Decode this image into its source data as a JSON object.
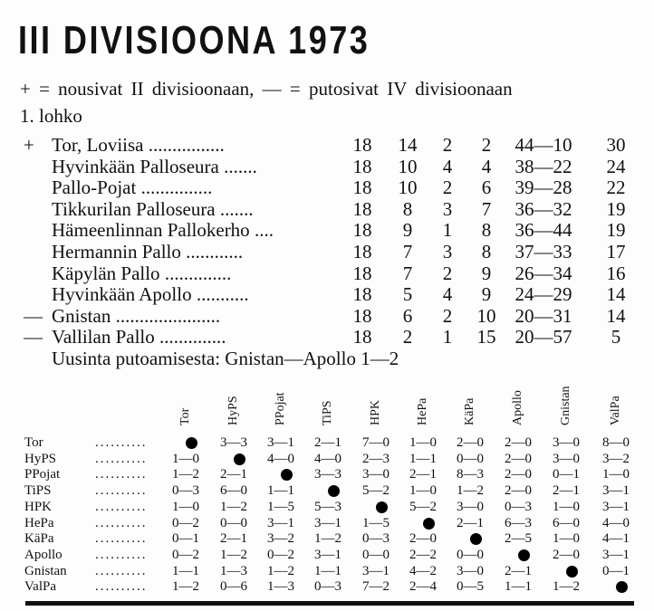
{
  "title": "III DIVISIOONA 1973",
  "legend": "+ = nousivat II divisioonaan, — = putosivat IV divisioonaan",
  "group": "1. lohko",
  "standings": [
    {
      "mark": "+",
      "name": "Tor, Loviisa",
      "dots": "................",
      "p": "18",
      "w": "14",
      "d": "2",
      "l": "2",
      "goals": "44—10",
      "pts": "30"
    },
    {
      "mark": "",
      "name": "Hyvinkään Palloseura",
      "dots": ".......",
      "p": "18",
      "w": "10",
      "d": "4",
      "l": "4",
      "goals": "38—22",
      "pts": "24"
    },
    {
      "mark": "",
      "name": "Pallo-Pojat",
      "dots": "...............",
      "p": "18",
      "w": "10",
      "d": "2",
      "l": "6",
      "goals": "39—28",
      "pts": "22"
    },
    {
      "mark": "",
      "name": "Tikkurilan Palloseura",
      "dots": ".......",
      "p": "18",
      "w": "8",
      "d": "3",
      "l": "7",
      "goals": "36—32",
      "pts": "19"
    },
    {
      "mark": "",
      "name": "Hämeenlinnan Pallokerho",
      "dots": "....",
      "p": "18",
      "w": "9",
      "d": "1",
      "l": "8",
      "goals": "36—44",
      "pts": "19"
    },
    {
      "mark": "",
      "name": "Hermannin Pallo",
      "dots": "............",
      "p": "18",
      "w": "7",
      "d": "3",
      "l": "8",
      "goals": "37—33",
      "pts": "17"
    },
    {
      "mark": "",
      "name": "Käpylän Pallo",
      "dots": "..............",
      "p": "18",
      "w": "7",
      "d": "2",
      "l": "9",
      "goals": "26—34",
      "pts": "16"
    },
    {
      "mark": "",
      "name": "Hyvinkään Apollo",
      "dots": "...........",
      "p": "18",
      "w": "5",
      "d": "4",
      "l": "9",
      "goals": "24—29",
      "pts": "14"
    },
    {
      "mark": "—",
      "name": "Gnistan",
      "dots": "......................",
      "p": "18",
      "w": "6",
      "d": "2",
      "l": "10",
      "goals": "20—31",
      "pts": "14"
    },
    {
      "mark": "—",
      "name": "Vallilan Pallo",
      "dots": "..............",
      "p": "18",
      "w": "2",
      "d": "1",
      "l": "15",
      "goals": "20—57",
      "pts": "5"
    }
  ],
  "replay": "Uusinta putoamisesta: Gnistan—Apollo 1—2",
  "matrix": {
    "teams": [
      "Tor",
      "HyPS",
      "PPojat",
      "TiPS",
      "HPK",
      "HePa",
      "KäPa",
      "Apollo",
      "Gnistan",
      "ValPa"
    ],
    "dots": "..........",
    "results": [
      [
        "●",
        "3—3",
        "3—1",
        "2—1",
        "7—0",
        "1—0",
        "2—0",
        "2—0",
        "3—0",
        "8—0"
      ],
      [
        "1—0",
        "●",
        "4—0",
        "4—0",
        "2—3",
        "1—1",
        "0—0",
        "2—0",
        "3—0",
        "3—2"
      ],
      [
        "1—2",
        "2—1",
        "●",
        "3—3",
        "3—0",
        "2—1",
        "8—3",
        "2—0",
        "0—1",
        "1—0"
      ],
      [
        "0—3",
        "6—0",
        "1—1",
        "●",
        "5—2",
        "1—0",
        "1—2",
        "2—0",
        "2—1",
        "3—1"
      ],
      [
        "1—0",
        "1—2",
        "1—5",
        "5—3",
        "●",
        "5—2",
        "3—0",
        "0—3",
        "1—0",
        "3—1"
      ],
      [
        "0—2",
        "0—0",
        "3—1",
        "3—1",
        "1—5",
        "●",
        "2—1",
        "6—3",
        "6—0",
        "4—0"
      ],
      [
        "0—1",
        "2—1",
        "3—2",
        "1—2",
        "0—3",
        "2—0",
        "●",
        "2—5",
        "1—0",
        "4—1"
      ],
      [
        "0—2",
        "1—2",
        "0—2",
        "3—1",
        "0—0",
        "2—2",
        "0—0",
        "●",
        "2—0",
        "3—1"
      ],
      [
        "1—1",
        "1—3",
        "1—2",
        "1—1",
        "3—1",
        "4—2",
        "3—0",
        "2—1",
        "●",
        "0—1"
      ],
      [
        "1—2",
        "0—6",
        "1—3",
        "0—3",
        "7—2",
        "2—4",
        "0—5",
        "1—1",
        "1—2",
        "●"
      ]
    ]
  }
}
